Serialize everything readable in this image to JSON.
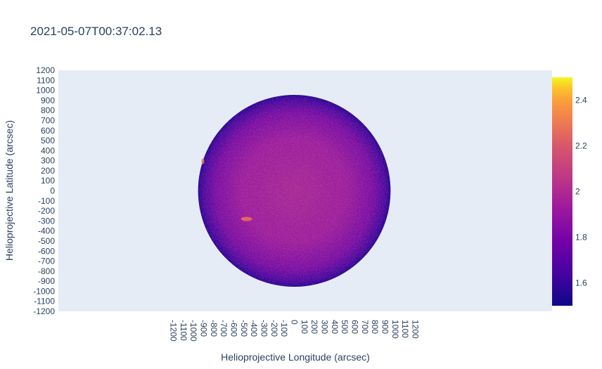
{
  "chart_data": {
    "type": "heatmap",
    "title": "2021-05-07T00:37:02.13",
    "xlabel": "Helioprojective Longitude (arcsec)",
    "ylabel": "Helioprojective Latitude (arcsec)",
    "xlim": [
      -1200,
      1200
    ],
    "ylim": [
      -1200,
      1200
    ],
    "x_ticks": [
      "-1200",
      "-1100",
      "-1000",
      "-900",
      "-800",
      "-700",
      "-600",
      "-500",
      "-400",
      "-300",
      "-200",
      "-100",
      "0",
      "100",
      "200",
      "300",
      "400",
      "500",
      "600",
      "700",
      "800",
      "900",
      "1000",
      "1100",
      "1200"
    ],
    "y_ticks": [
      "1200",
      "1100",
      "1000",
      "900",
      "800",
      "700",
      "600",
      "500",
      "400",
      "300",
      "200",
      "100",
      "0",
      "-100",
      "-200",
      "-300",
      "-400",
      "-500",
      "-600",
      "-700",
      "-800",
      "-900",
      "-1000",
      "-1100",
      "-1200"
    ],
    "solar_disk": {
      "center": [
        0,
        0
      ],
      "radius_arcsec": 955
    },
    "colorscale": {
      "name": "plasma",
      "min": 1.5,
      "max": 2.5,
      "ticks": [
        "1.6",
        "1.8",
        "2",
        "2.2",
        "2.4"
      ]
    },
    "background_color": "#e5ecf6",
    "grid": false
  }
}
